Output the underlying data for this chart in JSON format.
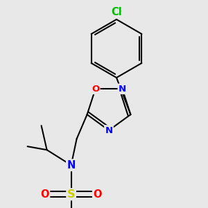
{
  "background_color": "#e8e8e8",
  "bond_color": "#000000",
  "bond_width": 1.5,
  "atom_colors": {
    "N": "#0000ff",
    "O": "#ff0000",
    "S": "#cccc00",
    "Cl": "#00bb00",
    "C": "#000000"
  },
  "font_size": 9.5,
  "fig_width": 3.0,
  "fig_height": 3.0,
  "dpi": 100
}
